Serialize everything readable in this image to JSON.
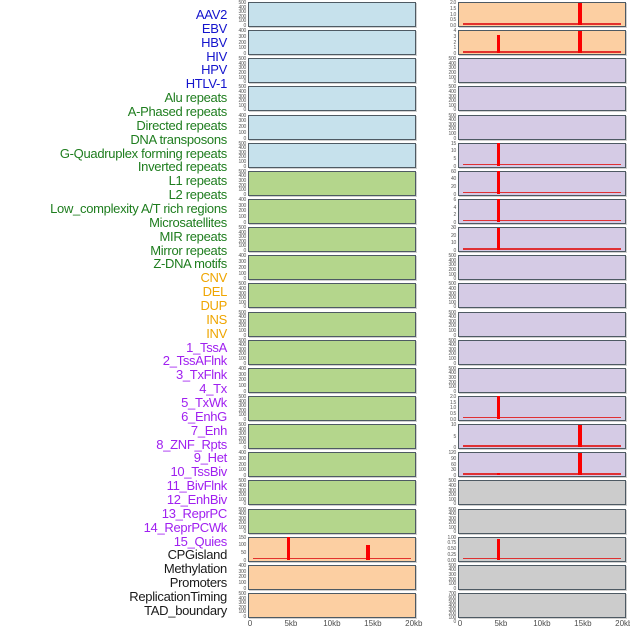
{
  "colors": {
    "label": {
      "virus": "#1414cd",
      "repeat": "#1e7d1e",
      "sv": "#efa500",
      "chromhmm": "#a020f0",
      "other": "#1a1a1a"
    },
    "fill": {
      "virus": "#c6e1ec",
      "repeat": "#b4d68c",
      "sv": "#fccfa2",
      "chromhmm": "#d5cbe5",
      "other": "#cccccc"
    },
    "plot_border": "#4e5a63",
    "spike_red": "#fb0000",
    "axis_text": "#4d4d4d"
  },
  "chart_data": {
    "type": "area",
    "description": "44 genomic-feature density tracks in two columns over a 0-20kb window; red spikes mark enriched positions near 5kb and 15kb",
    "x_ticks": [
      "0",
      "5kb",
      "10kb",
      "15kb",
      "20kb"
    ],
    "x_range_kb": [
      0,
      20
    ],
    "columns": 2,
    "rows_per_column": 22,
    "tracks": [
      {
        "label": "AAV2",
        "group": "virus",
        "yticks": [
          "500",
          "400",
          "300",
          "200",
          "100",
          "0"
        ],
        "baseline": false,
        "spikes": []
      },
      {
        "label": "EBV",
        "group": "virus",
        "yticks": [
          "400",
          "300",
          "200",
          "100",
          "0"
        ],
        "baseline": false,
        "spikes": []
      },
      {
        "label": "HBV",
        "group": "virus",
        "yticks": [
          "500",
          "400",
          "300",
          "200",
          "100",
          "0"
        ],
        "baseline": false,
        "spikes": []
      },
      {
        "label": "HIV",
        "group": "virus",
        "yticks": [
          "500",
          "400",
          "300",
          "200",
          "100",
          "0"
        ],
        "baseline": false,
        "spikes": []
      },
      {
        "label": "HPV",
        "group": "virus",
        "yticks": [
          "400",
          "300",
          "200",
          "100",
          "0"
        ],
        "baseline": false,
        "spikes": []
      },
      {
        "label": "HTLV-1",
        "group": "virus",
        "yticks": [
          "500",
          "400",
          "300",
          "200",
          "100",
          "0"
        ],
        "baseline": false,
        "spikes": []
      },
      {
        "label": "Alu repeats",
        "group": "repeat",
        "yticks": [
          "500",
          "400",
          "300",
          "200",
          "100",
          "0"
        ],
        "baseline": false,
        "spikes": []
      },
      {
        "label": "A-Phased repeats",
        "group": "repeat",
        "yticks": [
          "400",
          "300",
          "200",
          "100",
          "0"
        ],
        "baseline": false,
        "spikes": []
      },
      {
        "label": "Directed repeats",
        "group": "repeat",
        "yticks": [
          "500",
          "400",
          "300",
          "200",
          "100",
          "0"
        ],
        "baseline": false,
        "spikes": []
      },
      {
        "label": "DNA transposons",
        "group": "repeat",
        "yticks": [
          "400",
          "300",
          "200",
          "100",
          "0"
        ],
        "baseline": false,
        "spikes": []
      },
      {
        "label": "G-Quadruplex forming repeats",
        "group": "repeat",
        "yticks": [
          "500",
          "400",
          "300",
          "200",
          "100",
          "0"
        ],
        "baseline": false,
        "spikes": []
      },
      {
        "label": "Inverted repeats",
        "group": "repeat",
        "yticks": [
          "500",
          "400",
          "300",
          "200",
          "100",
          "0"
        ],
        "baseline": false,
        "spikes": []
      },
      {
        "label": "L1 repeats",
        "group": "repeat",
        "yticks": [
          "500",
          "400",
          "300",
          "200",
          "100",
          "0"
        ],
        "baseline": false,
        "spikes": []
      },
      {
        "label": "L2 repeats",
        "group": "repeat",
        "yticks": [
          "400",
          "300",
          "200",
          "100",
          "0"
        ],
        "baseline": false,
        "spikes": []
      },
      {
        "label": "Low_complexity A/T rich regions",
        "group": "repeat",
        "yticks": [
          "500",
          "400",
          "300",
          "200",
          "100",
          "0"
        ],
        "baseline": false,
        "spikes": []
      },
      {
        "label": "Microsatellites",
        "group": "repeat",
        "yticks": [
          "500",
          "400",
          "300",
          "200",
          "100",
          "0"
        ],
        "baseline": false,
        "spikes": []
      },
      {
        "label": "MIR repeats",
        "group": "repeat",
        "yticks": [
          "400",
          "300",
          "200",
          "100",
          "0"
        ],
        "baseline": false,
        "spikes": []
      },
      {
        "label": "Mirror repeats",
        "group": "repeat",
        "yticks": [
          "500",
          "400",
          "300",
          "200",
          "100",
          "0"
        ],
        "baseline": false,
        "spikes": []
      },
      {
        "label": "Z-DNA motifs",
        "group": "repeat",
        "yticks": [
          "500",
          "400",
          "300",
          "200",
          "100",
          "0"
        ],
        "baseline": false,
        "spikes": []
      },
      {
        "label": "CNV",
        "group": "sv",
        "yticks": [
          "150",
          "100",
          "50",
          "0"
        ],
        "baseline": true,
        "spikes": [
          {
            "x_kb": 5,
            "x_frac": 0.24,
            "height_frac": 1.0,
            "est_value": 150
          },
          {
            "x_kb": 15,
            "x_frac": 0.72,
            "height_frac": 0.63,
            "est_value": 95
          }
        ]
      },
      {
        "label": "DEL",
        "group": "sv",
        "yticks": [
          "400",
          "300",
          "200",
          "100",
          "0"
        ],
        "baseline": false,
        "spikes": []
      },
      {
        "label": "DUP",
        "group": "sv",
        "yticks": [
          "500",
          "400",
          "300",
          "200",
          "100",
          "0"
        ],
        "baseline": false,
        "spikes": []
      },
      {
        "label": "INS",
        "group": "sv",
        "yticks": [
          "2.0",
          "1.5",
          "1.0",
          "0.5",
          "0.0"
        ],
        "baseline": true,
        "spikes": [
          {
            "x_kb": 15,
            "x_frac": 0.73,
            "height_frac": 1.0,
            "est_value": 2.0
          }
        ]
      },
      {
        "label": "INV",
        "group": "sv",
        "yticks": [
          "4",
          "3",
          "2",
          "1",
          "0"
        ],
        "baseline": true,
        "spikes": [
          {
            "x_kb": 5,
            "x_frac": 0.24,
            "height_frac": 0.8,
            "est_value": 3.2
          },
          {
            "x_kb": 15,
            "x_frac": 0.73,
            "height_frac": 1.0,
            "est_value": 4
          }
        ]
      },
      {
        "label": "1_TssA",
        "group": "chromhmm",
        "yticks": [
          "500",
          "400",
          "300",
          "200",
          "100",
          "0"
        ],
        "baseline": false,
        "spikes": []
      },
      {
        "label": "2_TssAFlnk",
        "group": "chromhmm",
        "yticks": [
          "500",
          "400",
          "300",
          "200",
          "100",
          "0"
        ],
        "baseline": false,
        "spikes": []
      },
      {
        "label": "3_TxFlnk",
        "group": "chromhmm",
        "yticks": [
          "500",
          "400",
          "300",
          "200",
          "100",
          "0"
        ],
        "baseline": false,
        "spikes": []
      },
      {
        "label": "4_Tx",
        "group": "chromhmm",
        "yticks": [
          "15",
          "10",
          "5",
          "0"
        ],
        "baseline": true,
        "spikes": [
          {
            "x_kb": 5,
            "x_frac": 0.24,
            "height_frac": 1.0,
            "est_value": 15
          }
        ]
      },
      {
        "label": "5_TxWk",
        "group": "chromhmm",
        "yticks": [
          "60",
          "40",
          "20",
          "0"
        ],
        "baseline": true,
        "spikes": [
          {
            "x_kb": 5,
            "x_frac": 0.24,
            "height_frac": 1.0,
            "est_value": 60
          }
        ]
      },
      {
        "label": "6_EnhG",
        "group": "chromhmm",
        "yticks": [
          "6",
          "4",
          "2",
          "0"
        ],
        "baseline": true,
        "spikes": [
          {
            "x_kb": 5,
            "x_frac": 0.24,
            "height_frac": 1.0,
            "est_value": 6
          }
        ]
      },
      {
        "label": "7_Enh",
        "group": "chromhmm",
        "yticks": [
          "30",
          "20",
          "10",
          "0"
        ],
        "baseline": true,
        "spikes": [
          {
            "x_kb": 5,
            "x_frac": 0.24,
            "height_frac": 1.0,
            "est_value": 30
          }
        ]
      },
      {
        "label": "8_ZNF_Rpts",
        "group": "chromhmm",
        "yticks": [
          "500",
          "400",
          "300",
          "200",
          "100",
          "0"
        ],
        "baseline": false,
        "spikes": []
      },
      {
        "label": "9_Het",
        "group": "chromhmm",
        "yticks": [
          "500",
          "400",
          "300",
          "200",
          "100",
          "0"
        ],
        "baseline": false,
        "spikes": []
      },
      {
        "label": "10_TssBiv",
        "group": "chromhmm",
        "yticks": [
          "500",
          "400",
          "300",
          "200",
          "100",
          "0"
        ],
        "baseline": false,
        "spikes": []
      },
      {
        "label": "11_BivFlnk",
        "group": "chromhmm",
        "yticks": [
          "500",
          "400",
          "300",
          "200",
          "100",
          "0"
        ],
        "baseline": false,
        "spikes": []
      },
      {
        "label": "12_EnhBiv",
        "group": "chromhmm",
        "yticks": [
          "500",
          "400",
          "300",
          "200",
          "100",
          "0"
        ],
        "baseline": false,
        "spikes": []
      },
      {
        "label": "13_ReprPC",
        "group": "chromhmm",
        "yticks": [
          "2.0",
          "1.5",
          "1.0",
          "0.5",
          "0.0"
        ],
        "baseline": true,
        "spikes": [
          {
            "x_kb": 5,
            "x_frac": 0.24,
            "height_frac": 1.0,
            "est_value": 2.0
          }
        ]
      },
      {
        "label": "14_ReprPCWk",
        "group": "chromhmm",
        "yticks": [
          "10",
          "5",
          "0"
        ],
        "baseline": true,
        "spikes": [
          {
            "x_kb": 15,
            "x_frac": 0.73,
            "height_frac": 1.0,
            "est_value": 10
          }
        ]
      },
      {
        "label": "15_Quies",
        "group": "chromhmm",
        "yticks": [
          "120",
          "90",
          "60",
          "30",
          "0"
        ],
        "baseline": true,
        "spikes": [
          {
            "x_kb": 5,
            "x_frac": 0.24,
            "height_frac": 0.1,
            "est_value": 12
          },
          {
            "x_kb": 15,
            "x_frac": 0.73,
            "height_frac": 1.0,
            "est_value": 120
          }
        ]
      },
      {
        "label": "CPGisland",
        "group": "other",
        "yticks": [
          "500",
          "400",
          "300",
          "200",
          "100",
          "0"
        ],
        "baseline": false,
        "spikes": []
      },
      {
        "label": "Methylation",
        "group": "other",
        "yticks": [
          "500",
          "400",
          "300",
          "200",
          "100",
          "0"
        ],
        "baseline": false,
        "spikes": []
      },
      {
        "label": "Promoters",
        "group": "other",
        "yticks": [
          "1.00",
          "0.75",
          "0.50",
          "0.25",
          "0.00"
        ],
        "baseline": true,
        "spikes": [
          {
            "x_kb": 5,
            "x_frac": 0.24,
            "height_frac": 0.9,
            "est_value": 0.9
          }
        ]
      },
      {
        "label": "ReplicationTiming",
        "group": "other",
        "yticks": [
          "500",
          "400",
          "300",
          "200",
          "100",
          "0"
        ],
        "baseline": false,
        "spikes": []
      },
      {
        "label": "TAD_boundary",
        "group": "other",
        "yticks": [
          "700",
          "600",
          "500",
          "400",
          "300",
          "200",
          "100",
          "0"
        ],
        "baseline": false,
        "spikes": []
      }
    ]
  }
}
